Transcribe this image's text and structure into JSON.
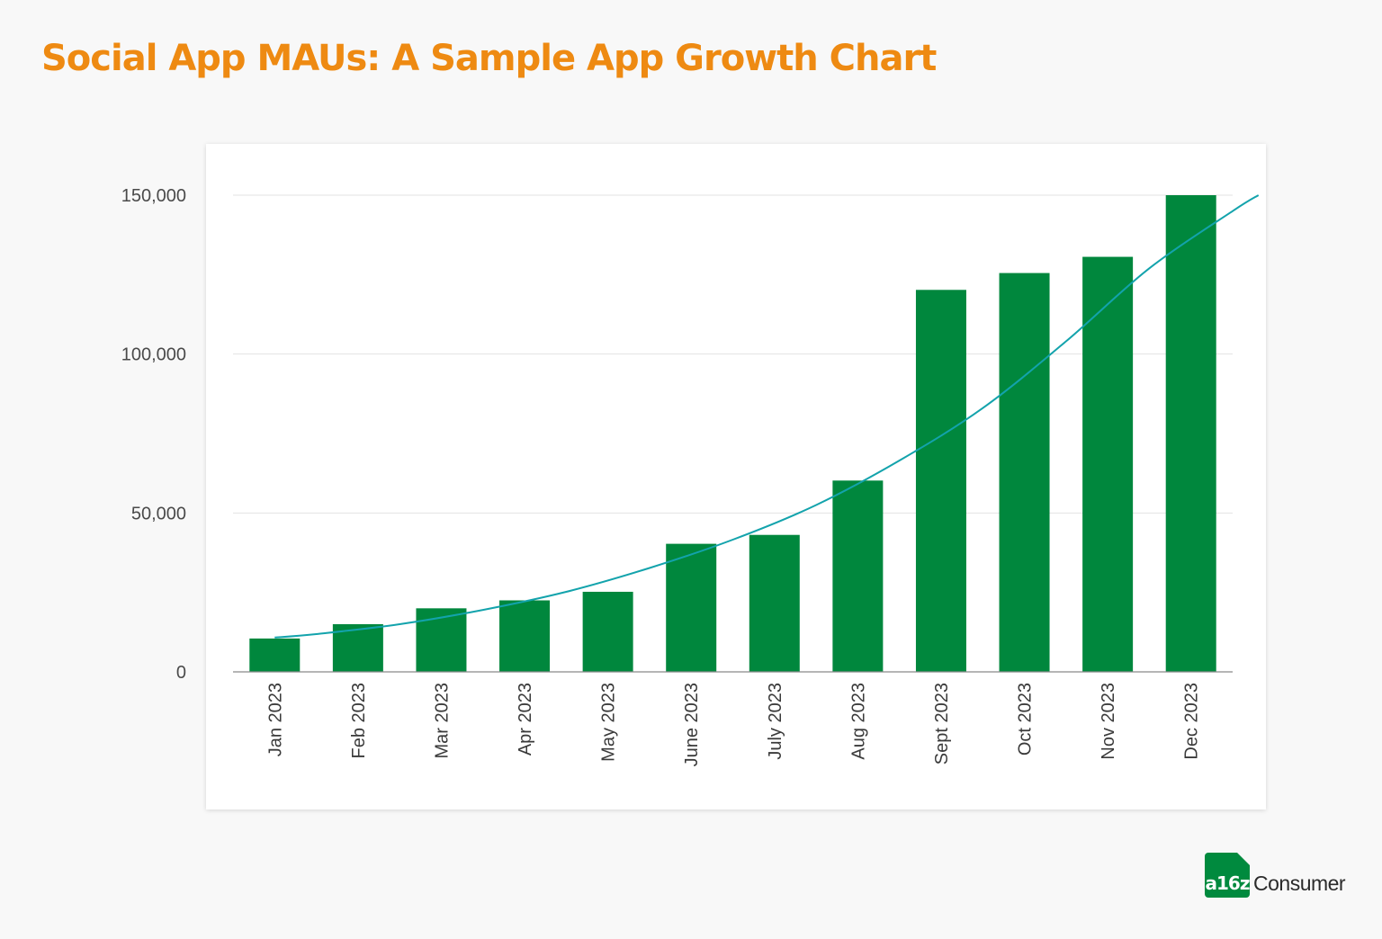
{
  "colors": {
    "title": "#ee8a12",
    "bar": "#00873d",
    "trend": "#13a3ac",
    "grid": "#e3e3e3",
    "axis": "#8a8a8a"
  },
  "brand": {
    "mark": "a16z",
    "name": "Consumer"
  },
  "chart_data": {
    "type": "bar",
    "title": "Social App MAUs: A Sample App Growth Chart",
    "xlabel": "",
    "ylabel": "",
    "categories": [
      "Jan 2023",
      "Feb 2023",
      "Mar 2023",
      "Apr 2023",
      "May 2023",
      "June 2023",
      "July 2023",
      "Aug 2023",
      "Sept 2023",
      "Oct 2023",
      "Nov 2023",
      "Dec 2023"
    ],
    "values": [
      10500,
      15000,
      20000,
      22500,
      25200,
      40300,
      43100,
      60200,
      120200,
      125500,
      130600,
      150000
    ],
    "ylim": [
      0,
      150000
    ],
    "yticks": [
      0,
      50000,
      100000,
      150000
    ],
    "ytick_labels": [
      "0",
      "50,000",
      "100,000",
      "150,000"
    ],
    "grid": true,
    "legend": "none",
    "trendline": {
      "type": "exponential",
      "x": [
        0.5,
        1,
        2,
        3,
        4,
        5,
        6,
        7,
        8,
        9,
        10,
        11,
        12,
        12.31
      ],
      "y": [
        10800,
        11900,
        15000,
        19500,
        25200,
        32700,
        41600,
        52500,
        66500,
        83000,
        104000,
        127000,
        145000,
        150000
      ]
    }
  }
}
